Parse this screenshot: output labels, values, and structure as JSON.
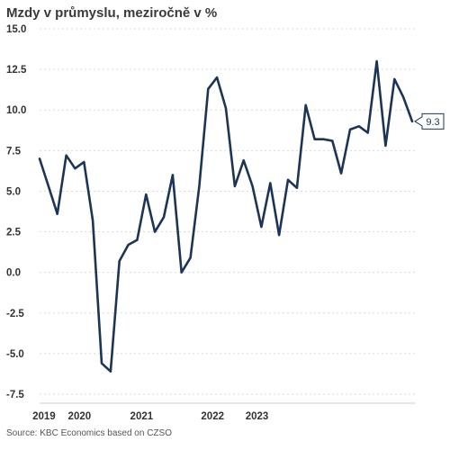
{
  "chart_data": {
    "type": "line",
    "title": "Mzdy v průmyslu, meziročně v %",
    "source": "Source: KBC Economics based on CZSO",
    "ylim": [
      -7.5,
      15.0
    ],
    "yticks": [
      "15.0",
      "12.5",
      "10.0",
      "7.5",
      "5.0",
      "2.5",
      "0.0",
      "-2.5",
      "-5.0",
      "-7.5"
    ],
    "ytick_values": [
      15.0,
      12.5,
      10.0,
      7.5,
      5.0,
      2.5,
      0.0,
      -2.5,
      -5.0,
      -7.5
    ],
    "xlabels": [
      "2019",
      "2020",
      "2021",
      "2022",
      "2023"
    ],
    "xlabel_positions": [
      0.5,
      4.5,
      11.5,
      19.5,
      24.5
    ],
    "series": [
      {
        "color": "#1c3557",
        "x": [
          0,
          1,
          2,
          3,
          4,
          5,
          6,
          7,
          8,
          9,
          10,
          11,
          12,
          13,
          14,
          15,
          16,
          17,
          18,
          19,
          20,
          21,
          22,
          23,
          24,
          25,
          26,
          27,
          28,
          29,
          30,
          31,
          32,
          33,
          34,
          35,
          36,
          37,
          38,
          39,
          40,
          41,
          42
        ],
        "values": [
          7.0,
          5.3,
          3.6,
          7.2,
          6.4,
          6.8,
          3.2,
          -5.6,
          -6.1,
          0.7,
          1.7,
          2.0,
          4.8,
          2.5,
          3.4,
          6.0,
          0.0,
          0.9,
          5.3,
          11.3,
          12.0,
          10.1,
          5.3,
          6.9,
          5.3,
          2.8,
          5.5,
          2.3,
          5.7,
          5.2,
          10.3,
          8.2,
          8.2,
          8.1,
          6.1,
          8.8,
          9.0,
          8.6,
          13.0,
          7.8,
          11.9,
          10.8,
          9.3
        ]
      }
    ],
    "last_value_label": "9.3",
    "grid": true
  }
}
